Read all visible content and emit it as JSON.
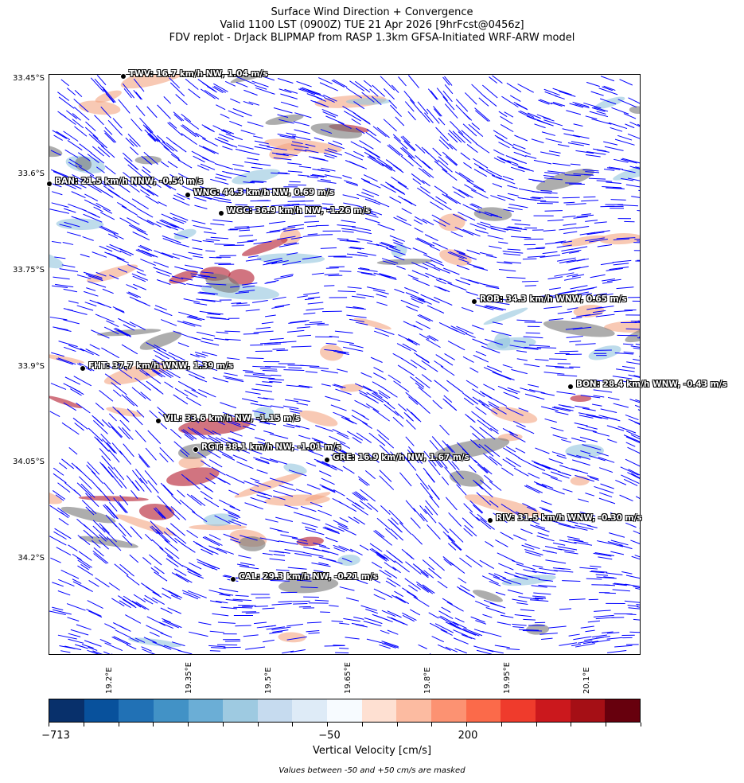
{
  "title": {
    "line1": "Surface Wind Direction + Convergence",
    "line2": "Valid 1100 LST (0900Z) TUE 21 Apr 2026 [9hrFcst@0456z]",
    "line3": "FDV replot - DrJack BLIPMAP from RASP 1.3km GFSA-Initiated WRF-ARW model"
  },
  "map": {
    "wind_vector_color": "#0000ff",
    "lat_ticks": [
      "33.45°S",
      "33.6°S",
      "33.75°S",
      "33.9°S",
      "34.05°S",
      "34.2°S"
    ],
    "lon_ticks": [
      "19.2°E",
      "19.35°E",
      "19.5°E",
      "19.65°E",
      "19.8°E",
      "19.95°E",
      "20.1°E"
    ],
    "stations": [
      {
        "label": "TWV: 16.7 km/h NW, 1.04 m/s"
      },
      {
        "label": "BAN: 21.5 km/h NNW, -0.54 m/s"
      },
      {
        "label": "WNG: 44.3 km/h NW, 0.69 m/s"
      },
      {
        "label": "WGC: 36.9 km/h NW, -1.26 m/s"
      },
      {
        "label": "ROB: 34.3 km/h WNW, 0.65 m/s"
      },
      {
        "label": "FHT: 37.7 km/h WNW, 1.39 m/s"
      },
      {
        "label": "BON: 28.4 km/h WNW, -0.43 m/s"
      },
      {
        "label": "VIL: 33.6 km/h NW, -1.15 m/s"
      },
      {
        "label": "RGT: 38.1 km/h NW, -1.01 m/s"
      },
      {
        "label": "GRE: 16.9 km/h NW, 1.67 m/s"
      },
      {
        "label": "RIV: 31.5 km/h WNW, -0.30 m/s"
      },
      {
        "label": "CAL: 29.3 km/h NW, -0.21 m/s"
      }
    ]
  },
  "colorbar": {
    "label": "Vertical Velocity [cm/s]",
    "tick_labels": [
      "−713",
      "−50",
      "200"
    ],
    "colors": [
      "#08306b",
      "#08519c",
      "#2171b5",
      "#4292c6",
      "#6baed6",
      "#9ecae1",
      "#c6dbef",
      "#deebf7",
      "#f7fbff",
      "#fee0d2",
      "#fcbba1",
      "#fc9272",
      "#fb6a4a",
      "#ef3b2c",
      "#cb181d",
      "#a50f15",
      "#67000d"
    ],
    "note": "Values between -50 and +50 cm/s are masked"
  }
}
